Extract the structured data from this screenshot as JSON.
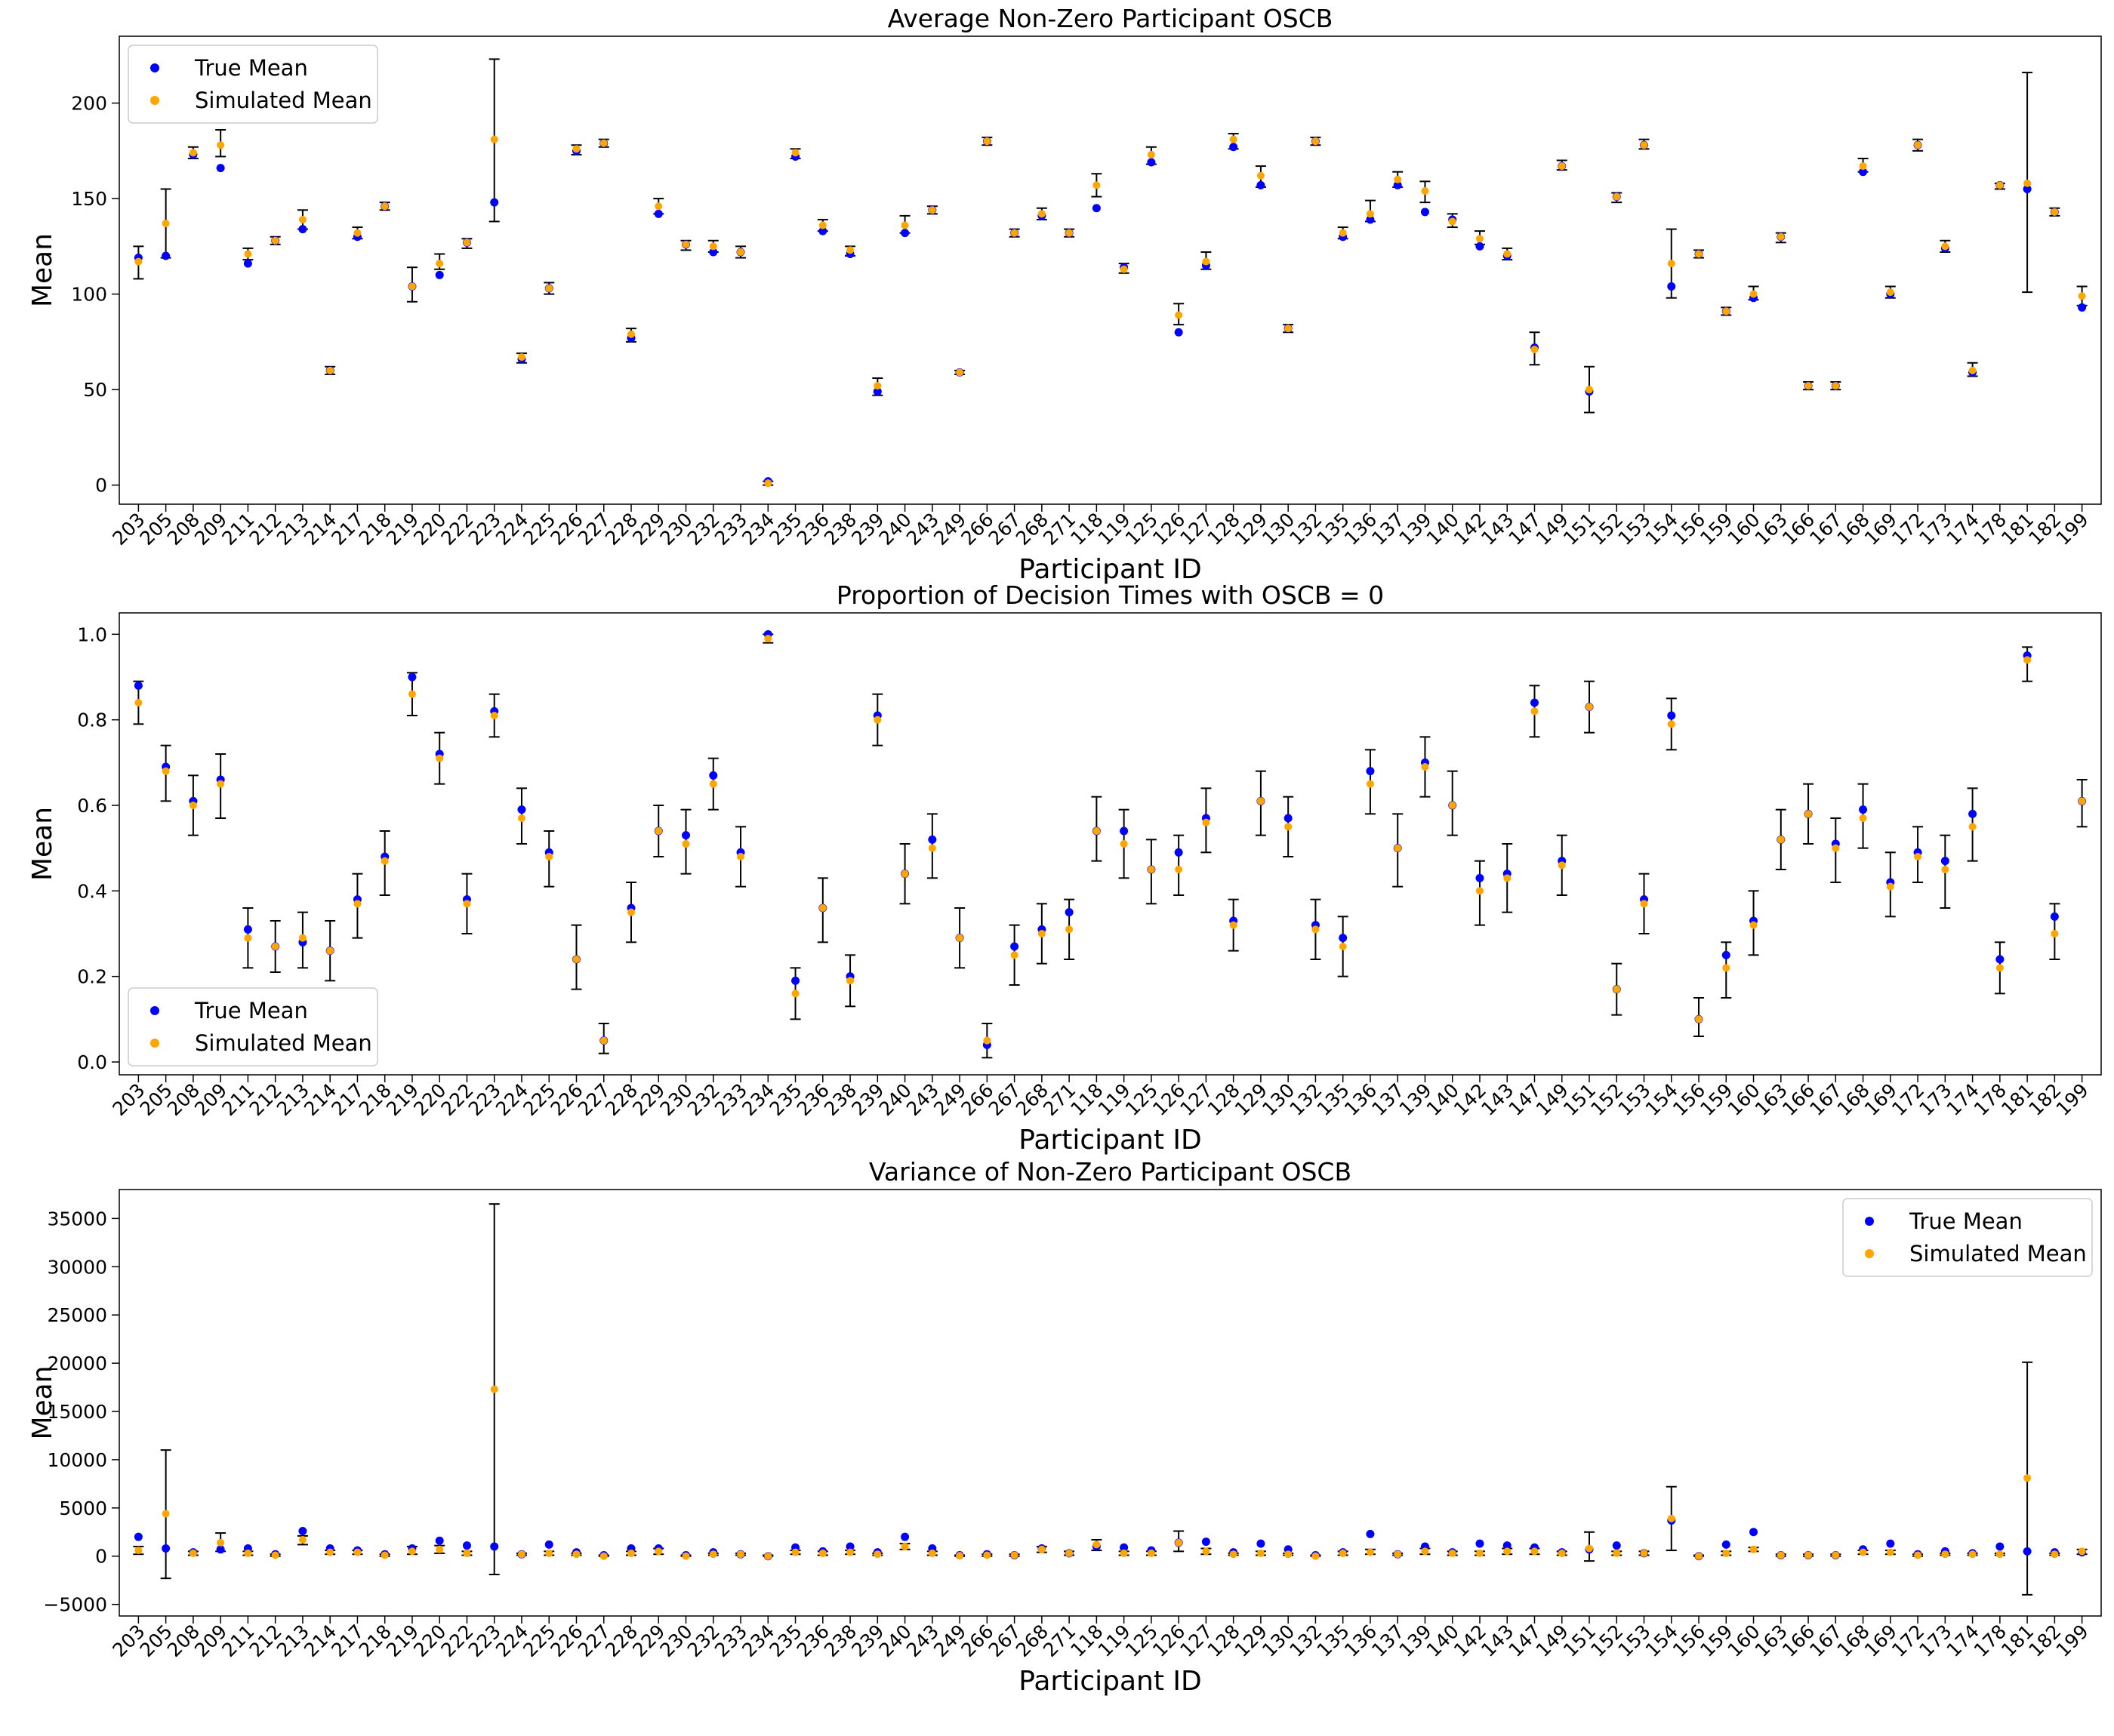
{
  "chart_data": [
    {
      "type": "scatter",
      "title": "Average Non-Zero Participant OSCB",
      "xlabel": "Participant ID",
      "ylabel": "Mean",
      "ylim": [
        -10,
        235
      ],
      "yticks": [
        0,
        50,
        100,
        150,
        200
      ],
      "legend_position": "top-left",
      "categories": [
        "203",
        "205",
        "208",
        "209",
        "211",
        "212",
        "213",
        "214",
        "217",
        "218",
        "219",
        "220",
        "222",
        "223",
        "224",
        "225",
        "226",
        "227",
        "228",
        "229",
        "230",
        "232",
        "233",
        "234",
        "235",
        "236",
        "238",
        "239",
        "240",
        "243",
        "249",
        "266",
        "267",
        "268",
        "271",
        "118",
        "119",
        "125",
        "126",
        "127",
        "128",
        "129",
        "130",
        "132",
        "135",
        "136",
        "137",
        "139",
        "140",
        "142",
        "143",
        "147",
        "149",
        "151",
        "152",
        "153",
        "154",
        "156",
        "159",
        "160",
        "163",
        "166",
        "167",
        "168",
        "169",
        "172",
        "173",
        "174",
        "178",
        "181",
        "182",
        "199"
      ],
      "series": [
        {
          "name": "True Mean",
          "color": "#0000ff",
          "values": [
            119,
            120,
            173,
            166,
            116,
            128,
            134,
            60,
            130,
            146,
            104,
            110,
            127,
            148,
            66,
            103,
            175,
            179,
            77,
            142,
            126,
            122,
            122,
            2,
            172,
            133,
            121,
            49,
            132,
            144,
            59,
            180,
            132,
            141,
            132,
            145,
            114,
            169,
            80,
            115,
            177,
            157,
            82,
            180,
            130,
            139,
            157,
            143,
            139,
            125,
            120,
            72,
            167,
            49,
            151,
            178,
            104,
            121,
            91,
            98,
            130,
            52,
            52,
            164,
            100,
            178,
            124,
            59,
            157,
            155,
            143,
            93
          ]
        },
        {
          "name": "Simulated Mean",
          "color": "#ffa500",
          "values": [
            117,
            137,
            174,
            178,
            121,
            128,
            139,
            60,
            132,
            146,
            104,
            116,
            127,
            181,
            67,
            103,
            176,
            179,
            79,
            146,
            126,
            125,
            122,
            1,
            174,
            136,
            123,
            52,
            136,
            144,
            59,
            180,
            132,
            142,
            132,
            157,
            113,
            173,
            89,
            117,
            181,
            162,
            82,
            180,
            132,
            142,
            160,
            154,
            138,
            129,
            121,
            71,
            167,
            50,
            151,
            178,
            116,
            121,
            91,
            100,
            130,
            52,
            52,
            167,
            101,
            178,
            125,
            60,
            157,
            158,
            143,
            99
          ]
        }
      ],
      "error_bars": {
        "low": [
          108,
          119,
          171,
          172,
          118,
          126,
          134,
          58,
          129,
          144,
          96,
          113,
          124,
          138,
          64,
          100,
          173,
          177,
          75,
          142,
          123,
          122,
          119,
          0,
          171,
          133,
          120,
          47,
          132,
          142,
          58,
          178,
          130,
          139,
          130,
          151,
          111,
          168,
          84,
          113,
          176,
          156,
          80,
          178,
          129,
          138,
          156,
          148,
          135,
          126,
          118,
          63,
          165,
          38,
          148,
          176,
          98,
          119,
          89,
          97,
          127,
          50,
          50,
          164,
          98,
          175,
          122,
          57,
          155,
          101,
          141,
          94
        ],
        "high": [
          125,
          155,
          177,
          186,
          124,
          130,
          144,
          62,
          135,
          148,
          114,
          121,
          129,
          223,
          69,
          106,
          178,
          181,
          82,
          150,
          128,
          128,
          125,
          2,
          176,
          139,
          125,
          56,
          141,
          146,
          60,
          182,
          134,
          145,
          134,
          163,
          116,
          177,
          95,
          122,
          184,
          167,
          84,
          182,
          135,
          149,
          164,
          159,
          142,
          133,
          124,
          80,
          170,
          62,
          153,
          181,
          134,
          123,
          93,
          104,
          132,
          54,
          54,
          171,
          104,
          181,
          128,
          64,
          158,
          216,
          145,
          104
        ]
      }
    },
    {
      "type": "scatter",
      "title": "Proportion of Decision Times with OSCB = 0",
      "xlabel": "Participant ID",
      "ylabel": "Mean",
      "ylim": [
        -0.03,
        1.05
      ],
      "yticks": [
        0.0,
        0.2,
        0.4,
        0.6,
        0.8,
        1.0
      ],
      "yticklabels": [
        "0.0",
        "0.2",
        "0.4",
        "0.6",
        "0.8",
        "1.0"
      ],
      "legend_position": "bottom-left",
      "categories": [
        "203",
        "205",
        "208",
        "209",
        "211",
        "212",
        "213",
        "214",
        "217",
        "218",
        "219",
        "220",
        "222",
        "223",
        "224",
        "225",
        "226",
        "227",
        "228",
        "229",
        "230",
        "232",
        "233",
        "234",
        "235",
        "236",
        "238",
        "239",
        "240",
        "243",
        "249",
        "266",
        "267",
        "268",
        "271",
        "118",
        "119",
        "125",
        "126",
        "127",
        "128",
        "129",
        "130",
        "132",
        "135",
        "136",
        "137",
        "139",
        "140",
        "142",
        "143",
        "147",
        "149",
        "151",
        "152",
        "153",
        "154",
        "156",
        "159",
        "160",
        "163",
        "166",
        "167",
        "168",
        "169",
        "172",
        "173",
        "174",
        "178",
        "181",
        "182",
        "199"
      ],
      "series": [
        {
          "name": "True Mean",
          "color": "#0000ff",
          "values": [
            0.88,
            0.69,
            0.61,
            0.66,
            0.31,
            0.27,
            0.28,
            0.26,
            0.38,
            0.48,
            0.9,
            0.72,
            0.38,
            0.82,
            0.59,
            0.49,
            0.24,
            0.05,
            0.36,
            0.54,
            0.53,
            0.67,
            0.49,
            1.0,
            0.19,
            0.36,
            0.2,
            0.81,
            0.44,
            0.52,
            0.29,
            0.04,
            0.27,
            0.31,
            0.35,
            0.54,
            0.54,
            0.45,
            0.49,
            0.57,
            0.33,
            0.61,
            0.57,
            0.32,
            0.29,
            0.68,
            0.5,
            0.7,
            0.6,
            0.43,
            0.44,
            0.84,
            0.47,
            0.83,
            0.17,
            0.38,
            0.81,
            0.1,
            0.25,
            0.33,
            0.52,
            0.58,
            0.51,
            0.59,
            0.42,
            0.49,
            0.47,
            0.58,
            0.24,
            0.95,
            0.34,
            0.61
          ]
        },
        {
          "name": "Simulated Mean",
          "color": "#ffa500",
          "values": [
            0.84,
            0.68,
            0.6,
            0.65,
            0.29,
            0.27,
            0.29,
            0.26,
            0.37,
            0.47,
            0.86,
            0.71,
            0.37,
            0.81,
            0.57,
            0.48,
            0.24,
            0.05,
            0.35,
            0.54,
            0.51,
            0.65,
            0.48,
            0.99,
            0.16,
            0.36,
            0.19,
            0.8,
            0.44,
            0.5,
            0.29,
            0.05,
            0.25,
            0.3,
            0.31,
            0.54,
            0.51,
            0.45,
            0.45,
            0.56,
            0.32,
            0.61,
            0.55,
            0.31,
            0.27,
            0.65,
            0.5,
            0.69,
            0.6,
            0.4,
            0.43,
            0.82,
            0.46,
            0.83,
            0.17,
            0.37,
            0.79,
            0.1,
            0.22,
            0.32,
            0.52,
            0.58,
            0.5,
            0.57,
            0.41,
            0.48,
            0.45,
            0.55,
            0.22,
            0.94,
            0.3,
            0.61
          ]
        }
      ],
      "error_bars": {
        "low": [
          0.79,
          0.61,
          0.53,
          0.57,
          0.22,
          0.21,
          0.22,
          0.19,
          0.29,
          0.39,
          0.81,
          0.65,
          0.3,
          0.76,
          0.51,
          0.41,
          0.17,
          0.02,
          0.28,
          0.48,
          0.44,
          0.59,
          0.41,
          0.98,
          0.1,
          0.28,
          0.13,
          0.74,
          0.37,
          0.43,
          0.22,
          0.01,
          0.18,
          0.23,
          0.24,
          0.47,
          0.43,
          0.37,
          0.39,
          0.49,
          0.26,
          0.53,
          0.48,
          0.24,
          0.2,
          0.58,
          0.41,
          0.62,
          0.53,
          0.32,
          0.35,
          0.76,
          0.39,
          0.77,
          0.11,
          0.3,
          0.73,
          0.06,
          0.15,
          0.25,
          0.45,
          0.51,
          0.42,
          0.5,
          0.34,
          0.42,
          0.36,
          0.47,
          0.16,
          0.89,
          0.24,
          0.55
        ],
        "high": [
          0.89,
          0.74,
          0.67,
          0.72,
          0.36,
          0.33,
          0.35,
          0.33,
          0.44,
          0.54,
          0.91,
          0.77,
          0.44,
          0.86,
          0.64,
          0.54,
          0.32,
          0.09,
          0.42,
          0.6,
          0.59,
          0.71,
          0.55,
          1.0,
          0.22,
          0.43,
          0.25,
          0.86,
          0.51,
          0.58,
          0.36,
          0.09,
          0.32,
          0.37,
          0.38,
          0.62,
          0.59,
          0.52,
          0.53,
          0.64,
          0.38,
          0.68,
          0.62,
          0.38,
          0.34,
          0.73,
          0.58,
          0.76,
          0.68,
          0.47,
          0.51,
          0.88,
          0.53,
          0.89,
          0.23,
          0.44,
          0.85,
          0.15,
          0.28,
          0.4,
          0.59,
          0.65,
          0.57,
          0.65,
          0.49,
          0.55,
          0.53,
          0.64,
          0.28,
          0.97,
          0.37,
          0.66
        ]
      }
    },
    {
      "type": "scatter",
      "title": "Variance of Non-Zero Participant OSCB",
      "xlabel": "Participant ID",
      "ylabel": "Mean",
      "ylim": [
        -6200,
        38000
      ],
      "yticks": [
        -5000,
        0,
        5000,
        10000,
        15000,
        20000,
        25000,
        30000,
        35000
      ],
      "yticklabels": [
        "−5000",
        "0",
        "5000",
        "10000",
        "15000",
        "20000",
        "25000",
        "30000",
        "35000"
      ],
      "legend_position": "top-right",
      "categories": [
        "203",
        "205",
        "208",
        "209",
        "211",
        "212",
        "213",
        "214",
        "217",
        "218",
        "219",
        "220",
        "222",
        "223",
        "224",
        "225",
        "226",
        "227",
        "228",
        "229",
        "230",
        "232",
        "233",
        "234",
        "235",
        "236",
        "238",
        "239",
        "240",
        "243",
        "249",
        "266",
        "267",
        "268",
        "271",
        "118",
        "119",
        "125",
        "126",
        "127",
        "128",
        "129",
        "130",
        "132",
        "135",
        "136",
        "137",
        "139",
        "140",
        "142",
        "143",
        "147",
        "149",
        "151",
        "152",
        "153",
        "154",
        "156",
        "159",
        "160",
        "163",
        "166",
        "167",
        "168",
        "169",
        "172",
        "173",
        "174",
        "178",
        "181",
        "182",
        "199"
      ],
      "series": [
        {
          "name": "True Mean",
          "color": "#0000ff",
          "values": [
            2000,
            800,
            400,
            700,
            800,
            200,
            2600,
            800,
            600,
            200,
            800,
            1600,
            1100,
            1000,
            200,
            1200,
            400,
            100,
            800,
            800,
            100,
            400,
            200,
            0,
            900,
            500,
            1000,
            400,
            2000,
            800,
            100,
            200,
            100,
            800,
            300,
            1000,
            900,
            600,
            1400,
            1500,
            400,
            1300,
            700,
            100,
            400,
            2300,
            200,
            1000,
            400,
            1300,
            1100,
            900,
            400,
            700,
            1100,
            300,
            3700,
            0,
            1200,
            2500,
            100,
            100,
            100,
            700,
            1300,
            200,
            500,
            300,
            1000,
            500,
            400,
            400
          ]
        },
        {
          "name": "Simulated Mean",
          "color": "#ffa500",
          "values": [
            600,
            4400,
            300,
            1400,
            300,
            100,
            1700,
            400,
            400,
            100,
            500,
            700,
            300,
            17300,
            200,
            300,
            200,
            0,
            300,
            500,
            0,
            200,
            200,
            0,
            400,
            300,
            400,
            200,
            1000,
            300,
            50,
            100,
            100,
            700,
            300,
            1200,
            300,
            300,
            1400,
            500,
            200,
            300,
            200,
            0,
            300,
            400,
            200,
            500,
            300,
            300,
            500,
            500,
            300,
            800,
            300,
            300,
            3900,
            0,
            300,
            700,
            100,
            100,
            100,
            400,
            400,
            100,
            200,
            200,
            200,
            8100,
            200,
            500
          ]
        }
      ],
      "error_bars": {
        "low": [
          200,
          -2300,
          100,
          500,
          100,
          0,
          1200,
          200,
          200,
          0,
          200,
          300,
          100,
          -1900,
          100,
          100,
          100,
          0,
          100,
          200,
          0,
          100,
          100,
          0,
          200,
          100,
          200,
          100,
          700,
          100,
          0,
          0,
          0,
          400,
          100,
          600,
          100,
          100,
          500,
          200,
          100,
          100,
          100,
          0,
          100,
          200,
          100,
          200,
          100,
          100,
          200,
          200,
          100,
          -500,
          100,
          100,
          600,
          0,
          100,
          500,
          0,
          0,
          0,
          200,
          200,
          0,
          100,
          100,
          100,
          -4000,
          100,
          200
        ],
        "high": [
          1000,
          11000,
          500,
          2400,
          500,
          200,
          2100,
          600,
          600,
          200,
          1000,
          1100,
          500,
          36500,
          300,
          500,
          300,
          100,
          500,
          800,
          100,
          300,
          300,
          100,
          600,
          500,
          600,
          300,
          1300,
          500,
          100,
          200,
          200,
          1000,
          500,
          1700,
          500,
          500,
          2600,
          800,
          300,
          500,
          300,
          100,
          500,
          700,
          300,
          800,
          500,
          500,
          800,
          800,
          500,
          2500,
          500,
          500,
          7200,
          100,
          500,
          900,
          200,
          200,
          200,
          600,
          600,
          200,
          300,
          300,
          300,
          20100,
          300,
          700
        ]
      }
    }
  ]
}
